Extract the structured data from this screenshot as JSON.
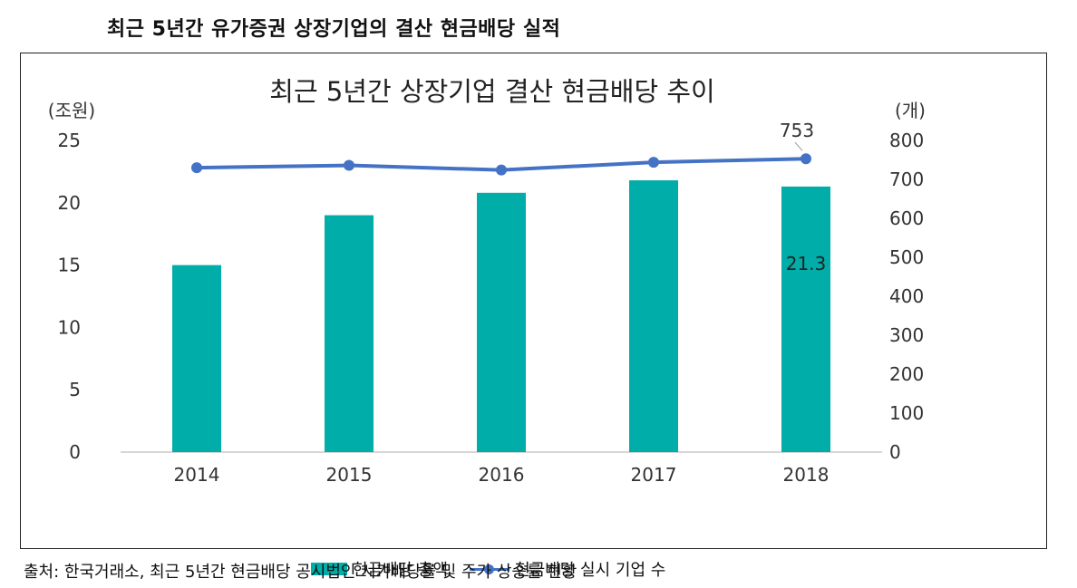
{
  "page_title": "최근 5년간 유가증권 상장기업의 결산 현금배당 실적",
  "source": "출처: 한국거래소, 최근 5년간 현금배당 공시법인 시가배당률 및 주가 상승률 현황",
  "colors": {
    "bar": "#00ADA8",
    "line": "#4472C4"
  },
  "chart_data": {
    "type": "bar",
    "title": "최근 5년간 상장기업 결산 현금배당 추이",
    "categories": [
      "2014",
      "2015",
      "2016",
      "2017",
      "2018"
    ],
    "ylabel_left": "(조원)",
    "ylabel_right": "(개)",
    "ylim_left": [
      0,
      25
    ],
    "ylim_right": [
      0,
      800
    ],
    "yticks_left": [
      "0",
      "5",
      "10",
      "15",
      "20",
      "25"
    ],
    "yticks_right": [
      "0",
      "100",
      "200",
      "300",
      "400",
      "500",
      "600",
      "700",
      "800"
    ],
    "series": [
      {
        "name": "현금배당 총액",
        "type": "bar",
        "axis": "left",
        "values": [
          15.0,
          19.0,
          20.8,
          21.8,
          21.3
        ]
      },
      {
        "name": "현금배당 실시 기업 수",
        "type": "line",
        "axis": "right",
        "values": [
          730,
          736,
          724,
          744,
          753
        ]
      }
    ],
    "data_labels": [
      {
        "series": 0,
        "index": 4,
        "text": "21.3"
      },
      {
        "series": 1,
        "index": 4,
        "text": "753"
      }
    ],
    "grid": false,
    "legend": "bottom"
  }
}
